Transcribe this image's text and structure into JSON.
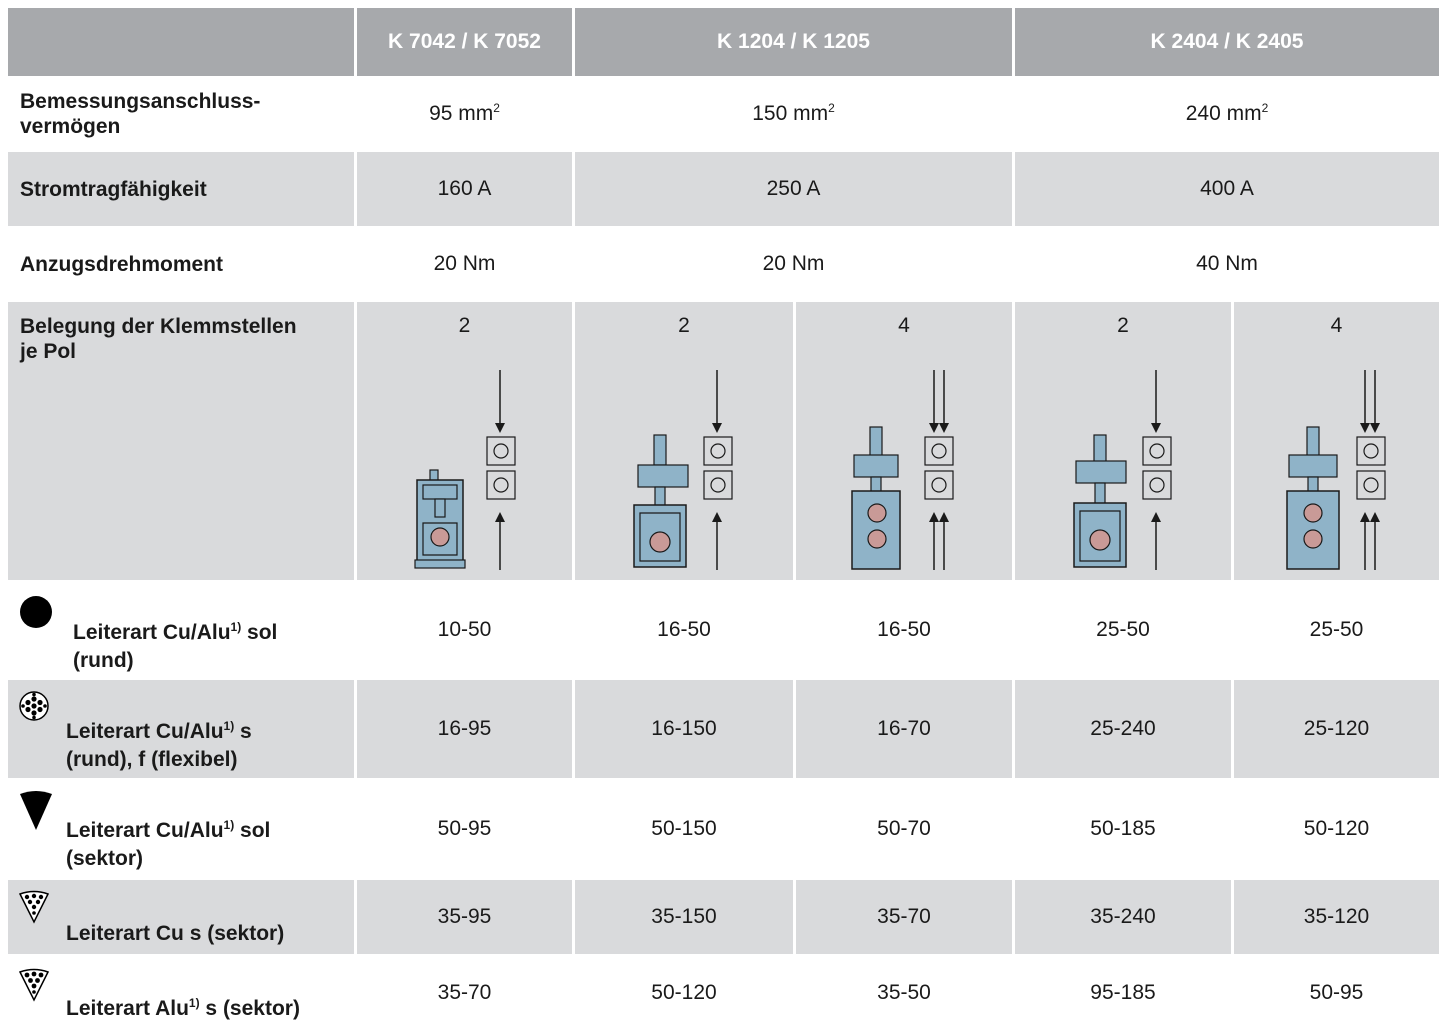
{
  "header": {
    "corner": "",
    "cols": [
      "K 7042 / K 7052",
      "K 1204 / K 1205",
      "K 2404 / K 2405"
    ]
  },
  "rows": {
    "capacity": {
      "label_line1": "Bemessungsanschluss-",
      "label_line2": "vermögen",
      "values": [
        "95 mm",
        "150 mm",
        "240 mm"
      ],
      "unit_sup": "2"
    },
    "current": {
      "label": "Stromtragfähigkeit",
      "values": [
        "160 A",
        "250 A",
        "400 A"
      ]
    },
    "torque": {
      "label": "Anzugsdrehmoment",
      "values": [
        "20 Nm",
        "20 Nm",
        "40 Nm"
      ]
    },
    "assignment": {
      "label_line1": "Belegung der Klemmstellen",
      "label_line2": "je Pol",
      "values": [
        "2",
        "2",
        "4",
        "2",
        "4"
      ]
    }
  },
  "conductors": [
    {
      "icon": "solid-round-icon",
      "label_line1": "Leiterart Cu/Alu",
      "sup": "1)",
      "label_line1_tail": " sol",
      "label_line2": "(rund)",
      "values": [
        "10-50",
        "16-50",
        "16-50",
        "25-50",
        "25-50"
      ]
    },
    {
      "icon": "stranded-round-icon",
      "label_line1": "Leiterart Cu/Alu",
      "sup": "1)",
      "label_line1_tail": " s",
      "label_line2": "(rund), f (flexibel)",
      "values": [
        "16-95",
        "16-150",
        "16-70",
        "25-240",
        "25-120"
      ]
    },
    {
      "icon": "solid-sector-icon",
      "label_line1": "Leiterart Cu/Alu",
      "sup": "1)",
      "label_line1_tail": " sol",
      "label_line2": "(sektor)",
      "values": [
        "50-95",
        "50-150",
        "50-70",
        "50-185",
        "50-120"
      ]
    },
    {
      "icon": "stranded-sector-icon",
      "label_line1": "Leiterart Cu s (sektor)",
      "values": [
        "35-95",
        "35-150",
        "35-70",
        "35-240",
        "35-120"
      ]
    },
    {
      "icon": "alu-stranded-sector-icon",
      "label_line1": "Leiterart Alu",
      "sup": "1)",
      "label_line1_tail": " s (sektor)",
      "values": [
        "35-70",
        "50-120",
        "35-50",
        "95-185",
        "50-95"
      ]
    }
  ],
  "colors": {
    "header": "#a7a9ac",
    "gray_row": "#d9dadc",
    "terminal_fill": "#8fb3c8",
    "conductor_fill": "#c99a97"
  }
}
